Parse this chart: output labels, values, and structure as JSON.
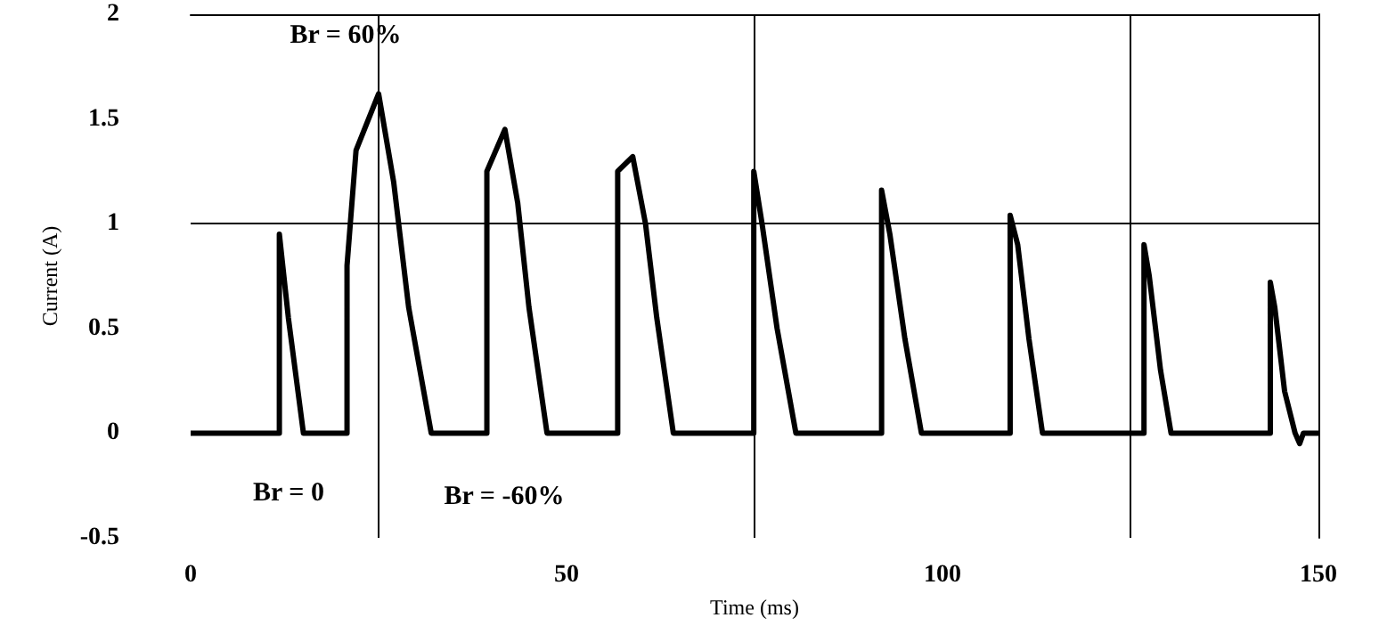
{
  "chart_data": {
    "type": "line",
    "xlabel": "Time (ms)",
    "ylabel": "Current (A)",
    "series": [
      {
        "color": "#000000",
        "x": [
          0,
          11.8,
          11.8,
          13,
          15,
          20.8,
          20.8,
          22,
          25,
          27,
          29,
          32,
          39.4,
          39.4,
          41.8,
          43.5,
          45,
          47.4,
          56.8,
          56.8,
          58.8,
          60.5,
          62,
          64.2,
          74.9,
          74.9,
          76,
          78,
          80.5,
          91.9,
          91.9,
          93,
          95,
          97.2,
          109,
          109,
          110,
          111.5,
          113.3,
          126.8,
          126.8,
          127.5,
          129,
          130.4,
          143.6,
          143.6,
          144.2,
          145.5,
          146.9,
          147.5,
          148,
          150
        ],
        "values": [
          0,
          0,
          0.95,
          0.55,
          0,
          0,
          0.8,
          1.35,
          1.62,
          1.2,
          0.6,
          0,
          0,
          1.25,
          1.45,
          1.1,
          0.6,
          0,
          0,
          1.25,
          1.32,
          1,
          0.55,
          0,
          0,
          1.25,
          1,
          0.5,
          0,
          0,
          1.16,
          0.95,
          0.45,
          0,
          0,
          1.04,
          0.9,
          0.45,
          0,
          0,
          0.9,
          0.75,
          0.3,
          0,
          0,
          0.72,
          0.6,
          0.2,
          0,
          -0.05,
          0,
          0
        ]
      }
    ],
    "xlim": [
      0,
      150
    ],
    "xticks": [
      0,
      50,
      100,
      150
    ],
    "ylim": [
      -0.5,
      2
    ],
    "yticks": [
      -0.5,
      0,
      0.5,
      1,
      1.5,
      2
    ],
    "grid": false,
    "marker": "none",
    "line_style": "solid",
    "ref_lines": [
      {
        "axis": "x",
        "value": 25
      },
      {
        "axis": "x",
        "value": 75
      },
      {
        "axis": "x",
        "value": 125
      },
      {
        "axis": "y",
        "value": 1
      }
    ],
    "annotations": [
      "Br = 60%",
      "Br = 0",
      "Br = -60%"
    ]
  }
}
